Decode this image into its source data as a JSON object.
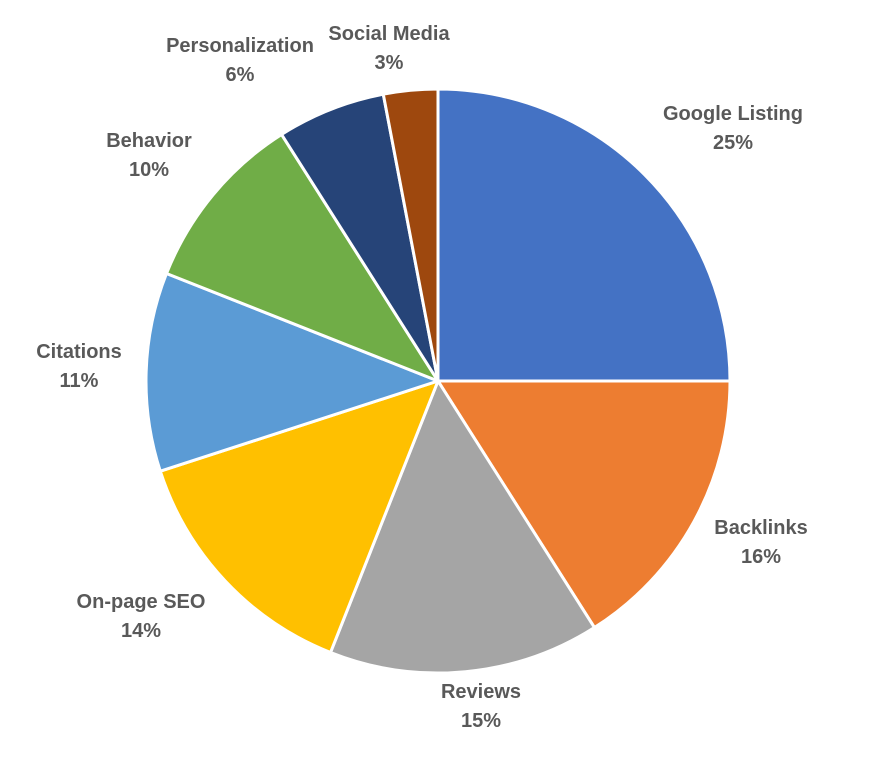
{
  "chart_data": {
    "type": "pie",
    "title": "",
    "start_angle_deg": 0,
    "direction": "clockwise",
    "slices": [
      {
        "label": "Google Listing",
        "value": 25,
        "pct_label": "25%",
        "color": "#4472C4"
      },
      {
        "label": "Backlinks",
        "value": 16,
        "pct_label": "16%",
        "color": "#ED7D31"
      },
      {
        "label": "Reviews",
        "value": 15,
        "pct_label": "15%",
        "color": "#A5A5A5"
      },
      {
        "label": "On-page SEO",
        "value": 14,
        "pct_label": "14%",
        "color": "#FFC000"
      },
      {
        "label": "Citations",
        "value": 11,
        "pct_label": "11%",
        "color": "#5B9BD5"
      },
      {
        "label": "Behavior",
        "value": 10,
        "pct_label": "10%",
        "color": "#70AD47"
      },
      {
        "label": "Personalization",
        "value": 6,
        "pct_label": "6%",
        "color": "#264478"
      },
      {
        "label": "Social Media",
        "value": 3,
        "pct_label": "3%",
        "color": "#9E480E"
      }
    ]
  }
}
